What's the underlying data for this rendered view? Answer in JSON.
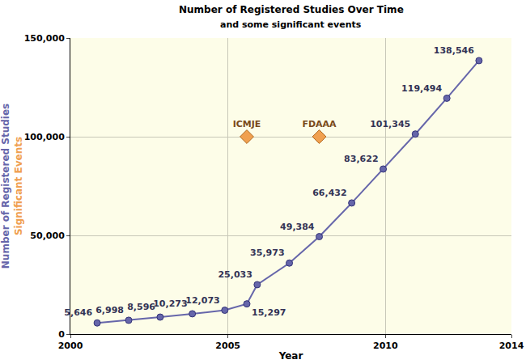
{
  "chart_data": {
    "type": "line",
    "title": "Number of Registered Studies Over Time",
    "subtitle": "and some significant events",
    "x_label": "Year",
    "xlim": [
      2000,
      2014
    ],
    "xticks": [
      2000,
      2005,
      2010,
      2014
    ],
    "ylim": [
      0,
      150000
    ],
    "yticks": [
      0,
      {
        "value": 50000,
        "label": "50,000"
      },
      {
        "value": 100000,
        "label": "100,000"
      },
      {
        "value": 150000,
        "label": "150,000"
      }
    ],
    "grid": true,
    "series": [
      {
        "name": "Number of Registered Studies",
        "type": "line",
        "color": "#6666aa",
        "marker": "circle",
        "data_labels": true,
        "x": [
          2000.85,
          2001.85,
          2002.85,
          2003.87,
          2004.9,
          2005.6,
          2005.93,
          2006.95,
          2007.9,
          2008.93,
          2009.93,
          2010.95,
          2011.95,
          2012.97
        ],
        "values": [
          5646,
          6998,
          8596,
          10273,
          12073,
          15297,
          25033,
          35973,
          49384,
          66432,
          83622,
          101345,
          119494,
          138546
        ],
        "value_labels": [
          "5,646",
          "6,998",
          "8,596",
          "10,273",
          "12,073",
          "15,297",
          "25,033",
          "35,973",
          "49,384",
          "66,432",
          "83,622",
          "101,345",
          "119,494",
          "138,546"
        ]
      },
      {
        "name": "Significant Events",
        "type": "scatter",
        "color": "#f0a050",
        "marker": "diamond",
        "x": [
          2005.6,
          2007.9
        ],
        "values": [
          100000,
          100000
        ],
        "labels": [
          "ICMJE",
          "FDAAA"
        ]
      }
    ]
  }
}
